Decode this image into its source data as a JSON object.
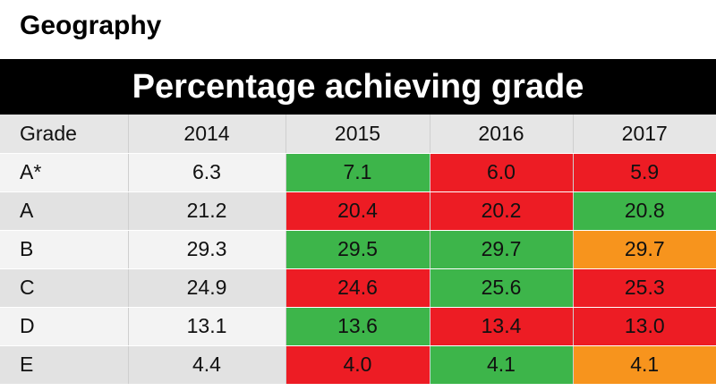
{
  "subject": "Geography",
  "heading": "Percentage achieving grade",
  "colors": {
    "increase": "#3db54a",
    "decrease": "#ed1c24",
    "same": "#f7941d"
  },
  "chart_data": {
    "type": "table",
    "columns": [
      "Grade",
      "2014",
      "2015",
      "2016",
      "2017"
    ],
    "rows": [
      {
        "grade": "A*",
        "values": [
          "6.3",
          "7.1",
          "6.0",
          "5.9"
        ],
        "change": [
          "none",
          "increase",
          "decrease",
          "decrease"
        ]
      },
      {
        "grade": "A",
        "values": [
          "21.2",
          "20.4",
          "20.2",
          "20.8"
        ],
        "change": [
          "none",
          "decrease",
          "decrease",
          "increase"
        ]
      },
      {
        "grade": "B",
        "values": [
          "29.3",
          "29.5",
          "29.7",
          "29.7"
        ],
        "change": [
          "none",
          "increase",
          "increase",
          "same"
        ]
      },
      {
        "grade": "C",
        "values": [
          "24.9",
          "24.6",
          "25.6",
          "25.3"
        ],
        "change": [
          "none",
          "decrease",
          "increase",
          "decrease"
        ]
      },
      {
        "grade": "D",
        "values": [
          "13.1",
          "13.6",
          "13.4",
          "13.0"
        ],
        "change": [
          "none",
          "increase",
          "decrease",
          "decrease"
        ]
      },
      {
        "grade": "E",
        "values": [
          "4.4",
          "4.0",
          "4.1",
          "4.1"
        ],
        "change": [
          "none",
          "decrease",
          "increase",
          "same"
        ]
      }
    ]
  }
}
